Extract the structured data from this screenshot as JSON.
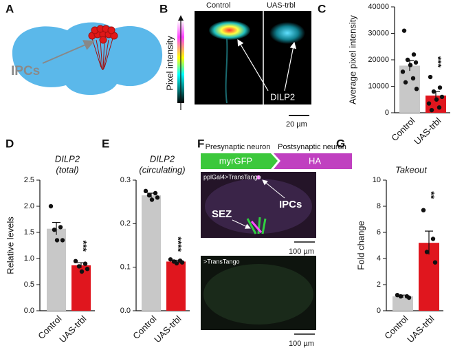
{
  "figure": {
    "A": {
      "label": "A",
      "ipcs": "IPCs"
    },
    "B": {
      "label": "B",
      "axis": "Pixel intensity",
      "control": "Control",
      "treatment": "UAS-trbl",
      "marker": "DILP2",
      "scale": "20 µm"
    },
    "F": {
      "label": "F",
      "pre": "Presynaptic neuron",
      "post": "Postsynaptic neuron",
      "pre_marker": "myrGFP",
      "post_marker": "HA",
      "genotype_1": "pplGal4>TransTango",
      "sez": "SEZ",
      "ipcs": "IPCs",
      "scale_1": "100 µm",
      "genotype_2": ">TransTango",
      "scale_2": "100 µm"
    }
  },
  "chart_data": [
    {
      "type": "bar",
      "panel": "C",
      "y_label": "Average pixel intensity",
      "categories": [
        "Control",
        "UAS-trbl"
      ],
      "values": [
        17800,
        6500
      ],
      "errors": [
        2000,
        1500
      ],
      "points": [
        [
          31000,
          22000,
          20000,
          19000,
          18000,
          15500,
          13000,
          11500,
          9000
        ],
        [
          13500,
          9500,
          8000,
          6000,
          5000,
          3500,
          2000,
          1000
        ]
      ],
      "colors": [
        "#c8c8c8",
        "#e0161e"
      ],
      "ylim": [
        0,
        40000
      ],
      "yticks": [
        0,
        10000,
        20000,
        30000,
        40000
      ],
      "annotation": "***"
    },
    {
      "type": "bar",
      "panel": "D",
      "title": [
        "DILP2",
        "(total)"
      ],
      "y_label": "Relative levels",
      "categories": [
        "Control",
        "UAS-trbl"
      ],
      "values": [
        1.57,
        0.87
      ],
      "errors": [
        0.12,
        0.05
      ],
      "points": [
        [
          2.0,
          1.6,
          1.55,
          1.35,
          1.35
        ],
        [
          0.95,
          0.9,
          0.85,
          0.8,
          0.75
        ]
      ],
      "colors": [
        "#c8c8c8",
        "#e0161e"
      ],
      "ylim": [
        0,
        2.5
      ],
      "yticks": [
        {
          "value": 0,
          "label": "0.0"
        },
        0.5,
        {
          "value": 1,
          "label": "1.0"
        },
        1.5,
        {
          "value": 2,
          "label": "2.0"
        },
        2.5
      ],
      "annotation": "***"
    },
    {
      "type": "bar",
      "panel": "E",
      "title": [
        "DILP2",
        "(circulating)"
      ],
      "categories": [
        "Control",
        "UAS-trbl"
      ],
      "values": [
        0.265,
        0.113
      ],
      "errors": [
        0.005,
        0.003
      ],
      "points": [
        [
          0.275,
          0.27,
          0.265,
          0.26,
          0.255
        ],
        [
          0.118,
          0.115,
          0.113,
          0.111,
          0.109
        ]
      ],
      "colors": [
        "#c8c8c8",
        "#e0161e"
      ],
      "ylim": [
        0,
        0.3
      ],
      "yticks": [
        {
          "value": 0,
          "label": "0.0"
        },
        0.1,
        0.2,
        0.3
      ],
      "annotation": "****"
    },
    {
      "type": "bar",
      "panel": "G",
      "title": [
        "Takeout"
      ],
      "y_label": "Fold change",
      "categories": [
        "Control",
        "UAS-trbl"
      ],
      "values": [
        1.1,
        5.2
      ],
      "errors": [
        0.1,
        0.9
      ],
      "points": [
        [
          1.2,
          1.1,
          1.1,
          1.0
        ],
        [
          7.7,
          5.5,
          4.5,
          3.7
        ]
      ],
      "colors": [
        "#c8c8c8",
        "#e0161e"
      ],
      "ylim": [
        0,
        10
      ],
      "yticks": [
        0,
        2,
        4,
        6,
        8,
        10
      ],
      "annotation": "**"
    }
  ]
}
